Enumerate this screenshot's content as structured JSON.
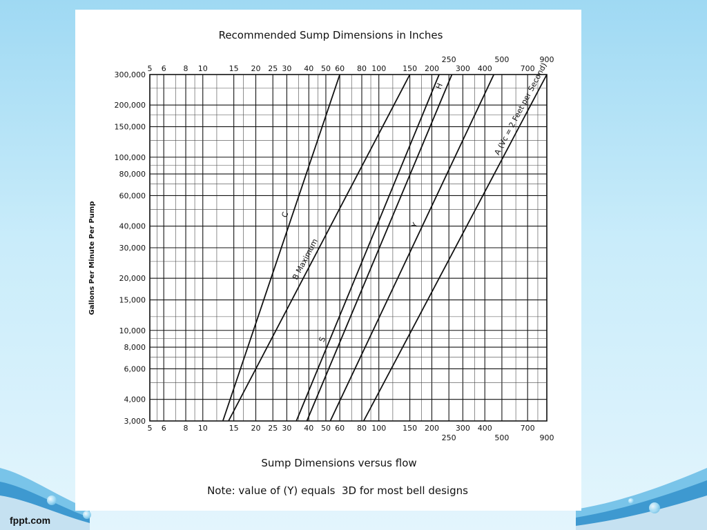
{
  "footer": {
    "brand": "fppt.com"
  },
  "chart_data": {
    "type": "line",
    "title": "Recommended Sump Dimensions in Inches",
    "subtitle": "Sump Dimensions versus flow",
    "note": "Note: value of (Y) equals  3D for most bell designs",
    "ylabel": "Gallons Per Minute Per Pump",
    "xlabel": "",
    "x_scale": "log",
    "y_scale": "log",
    "xlim": [
      5,
      900
    ],
    "ylim": [
      3000,
      300000
    ],
    "grid": true,
    "x_ticks_row1": [
      "5",
      "6",
      "8",
      "10",
      "15",
      "20",
      "25",
      "30",
      "40",
      "50",
      "60",
      "80",
      "100",
      "150",
      "200",
      "300",
      "400",
      "700"
    ],
    "x_ticks_row2": [
      "250",
      "500",
      "900"
    ],
    "y_ticks": [
      "300,000",
      "200,000",
      "150,000",
      "100,000",
      "80,000",
      "60,000",
      "40,000",
      "30,000",
      "20,000",
      "15,000",
      "10,000",
      "8,000",
      "6,000",
      "4,000",
      "3,000"
    ],
    "series": [
      {
        "name": "C",
        "x": [
          13,
          60
        ],
        "y": [
          3000,
          300000
        ]
      },
      {
        "name": "B Maximum",
        "x": [
          14,
          150
        ],
        "y": [
          3000,
          300000
        ]
      },
      {
        "name": "S",
        "x": [
          34,
          220
        ],
        "y": [
          3000,
          300000
        ]
      },
      {
        "name": "H",
        "x": [
          39,
          260
        ],
        "y": [
          3000,
          300000
        ]
      },
      {
        "name": "Y",
        "x": [
          53,
          450
        ],
        "y": [
          3000,
          300000
        ]
      },
      {
        "name": "A (Vc = 2 Feet per Second)",
        "x": [
          82,
          900
        ],
        "y": [
          3000,
          300000
        ]
      }
    ]
  }
}
